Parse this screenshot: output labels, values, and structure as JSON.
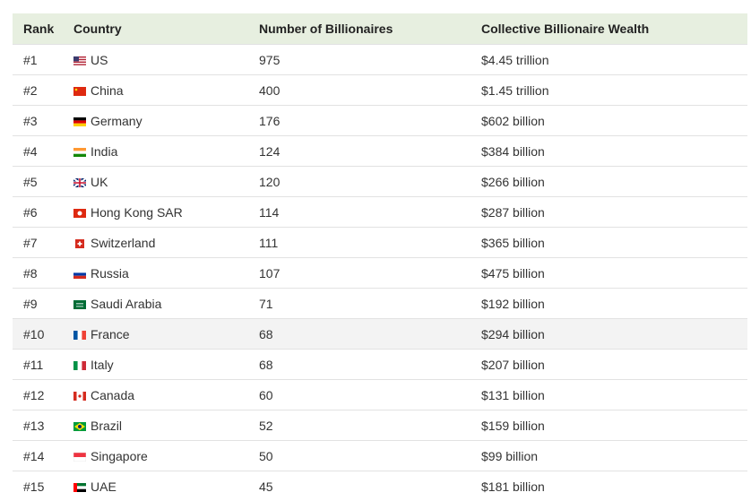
{
  "table": {
    "headers": [
      "Rank",
      "Country",
      "Number of Billionaires",
      "Collective Billionaire Wealth"
    ],
    "rows": [
      [
        "#1",
        "US",
        975,
        "$4.45 trillion"
      ],
      [
        "#2",
        "China",
        400,
        "$1.45 trillion"
      ],
      [
        "#3",
        "Germany",
        176,
        "$602 billion"
      ],
      [
        "#4",
        "India",
        124,
        "$384 billion"
      ],
      [
        "#5",
        "UK",
        120,
        "$266 billion"
      ],
      [
        "#6",
        "Hong Kong SAR",
        114,
        "$287 billion"
      ],
      [
        "#7",
        "Switzerland",
        111,
        "$365 billion"
      ],
      [
        "#8",
        "Russia",
        107,
        "$475 billion"
      ],
      [
        "#9",
        "Saudi Arabia",
        71,
        "$192 billion"
      ],
      [
        "#10",
        "France",
        68,
        "$294 billion"
      ],
      [
        "#11",
        "Italy",
        68,
        "$207 billion"
      ],
      [
        "#12",
        "Canada",
        60,
        "$131 billion"
      ],
      [
        "#13",
        "Brazil",
        52,
        "$159 billion"
      ],
      [
        "#14",
        "Singapore",
        50,
        "$99 billion"
      ],
      [
        "#15",
        "UAE",
        45,
        "$181 billion"
      ]
    ]
  }
}
